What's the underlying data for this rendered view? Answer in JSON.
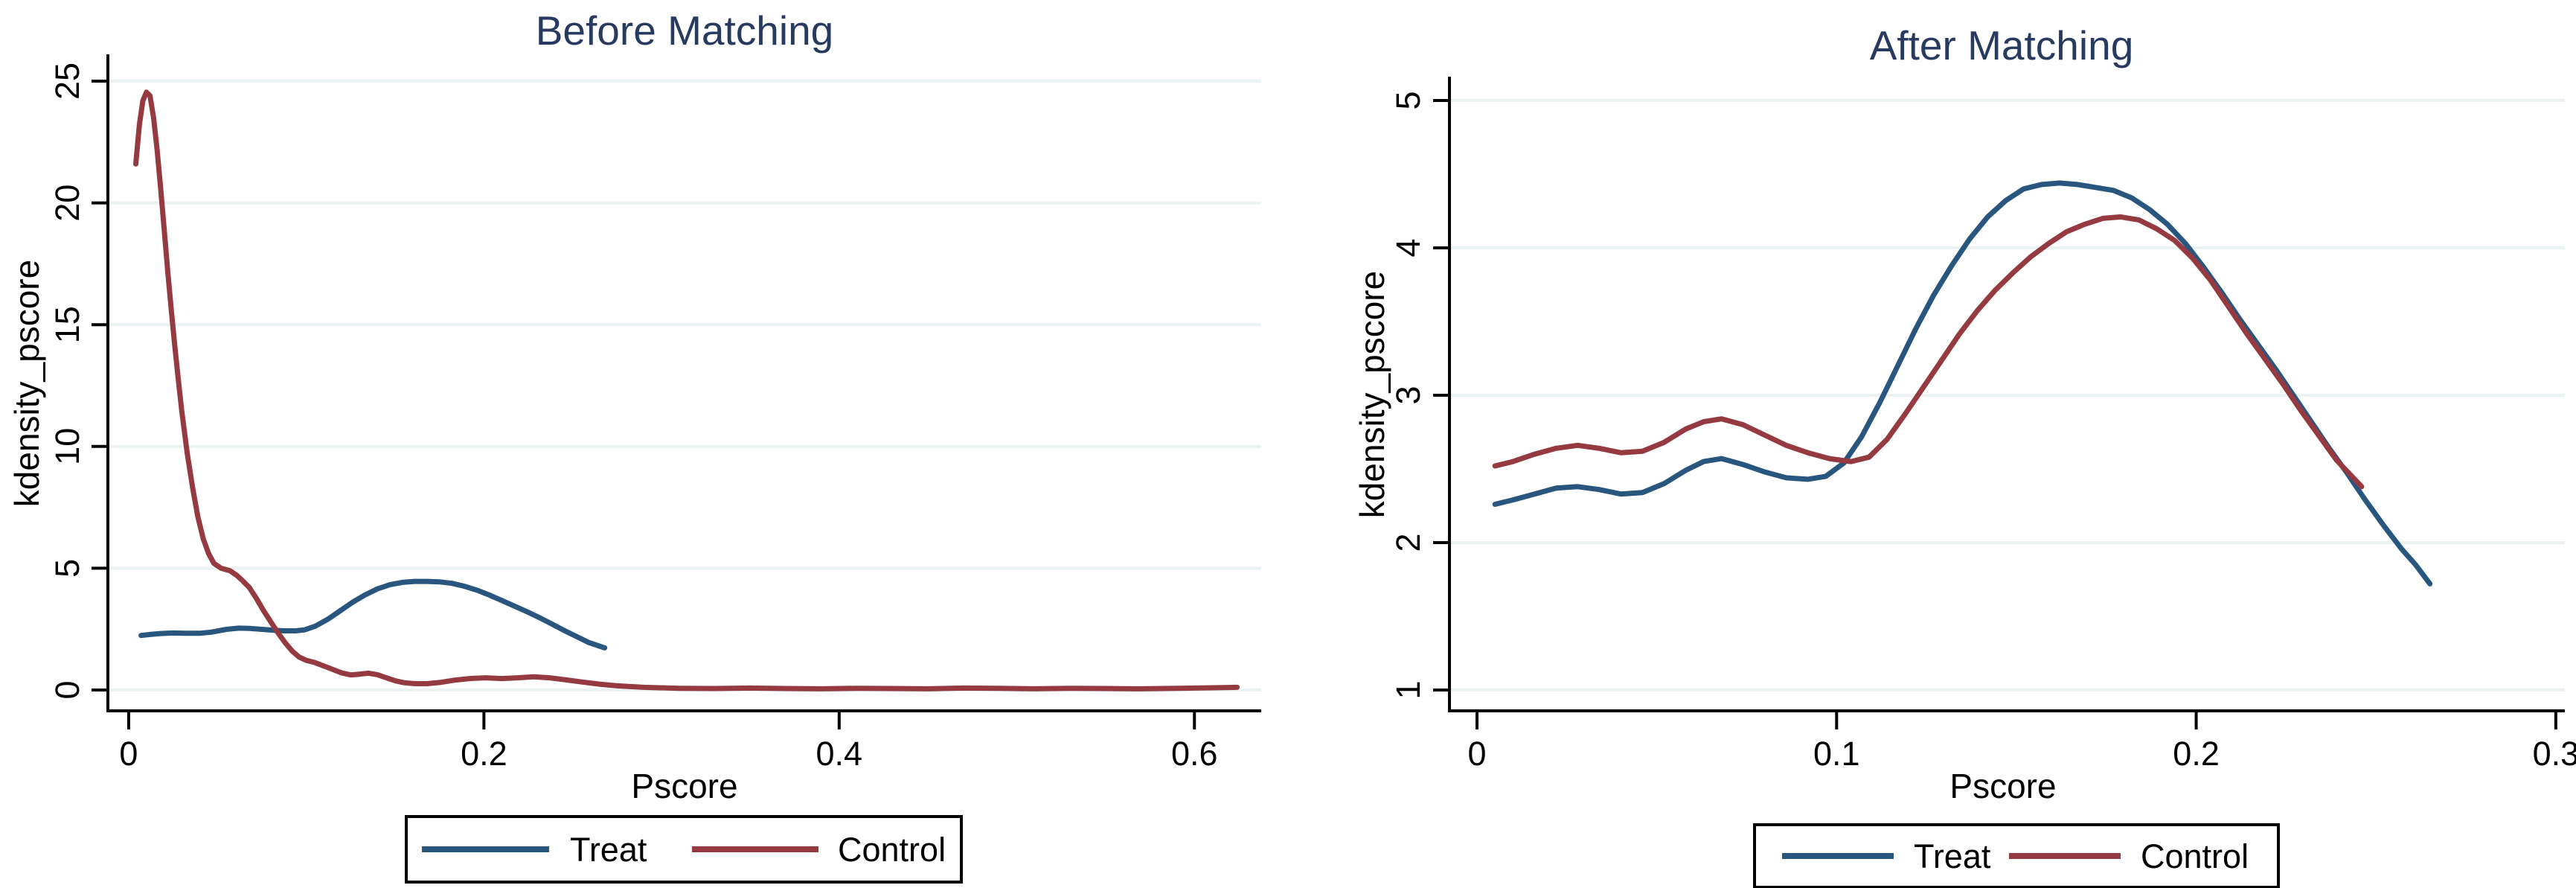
{
  "figure": {
    "description": "Two kernel density plots of propensity scores",
    "background": "#ffffff"
  },
  "colors": {
    "treat": "#28567f",
    "control": "#943a40",
    "title_text": "#273a5f",
    "grid": "#eaf2f3",
    "axis": "#000000",
    "legend_border": "#000000",
    "legend_background": "#ffffff"
  },
  "chart_data": [
    {
      "type": "line",
      "title": "Before Matching",
      "xlabel": "Pscore",
      "ylabel": "kdensity_pscore",
      "grid": "horizontal",
      "legend_position": "bottom",
      "legend": {
        "treat": "Treat",
        "control": "Control"
      },
      "xlim": [
        -0.0117,
        0.6376
      ],
      "ylim": [
        -0.856,
        26.04
      ],
      "x_ticks": [
        {
          "v": 0,
          "label": "0"
        },
        {
          "v": 0.2,
          "label": "0.2"
        },
        {
          "v": 0.4,
          "label": "0.4"
        },
        {
          "v": 0.6,
          "label": "0.6"
        }
      ],
      "y_ticks": [
        {
          "v": 0,
          "label": "0"
        },
        {
          "v": 5,
          "label": "5"
        },
        {
          "v": 10,
          "label": "10"
        },
        {
          "v": 15,
          "label": "15"
        },
        {
          "v": 20,
          "label": "20"
        },
        {
          "v": 25,
          "label": "25"
        }
      ],
      "series": [
        {
          "name": "Treat",
          "color": "#28567f",
          "points": [
            [
              0.007,
              2.24
            ],
            [
              0.012,
              2.28
            ],
            [
              0.018,
              2.32
            ],
            [
              0.025,
              2.34
            ],
            [
              0.032,
              2.33
            ],
            [
              0.04,
              2.33
            ],
            [
              0.047,
              2.38
            ],
            [
              0.055,
              2.49
            ],
            [
              0.062,
              2.54
            ],
            [
              0.068,
              2.53
            ],
            [
              0.075,
              2.49
            ],
            [
              0.082,
              2.45
            ],
            [
              0.088,
              2.43
            ],
            [
              0.094,
              2.43
            ],
            [
              0.099,
              2.47
            ],
            [
              0.105,
              2.62
            ],
            [
              0.112,
              2.9
            ],
            [
              0.119,
              3.25
            ],
            [
              0.126,
              3.6
            ],
            [
              0.133,
              3.9
            ],
            [
              0.14,
              4.15
            ],
            [
              0.147,
              4.32
            ],
            [
              0.154,
              4.42
            ],
            [
              0.161,
              4.46
            ],
            [
              0.168,
              4.46
            ],
            [
              0.175,
              4.44
            ],
            [
              0.182,
              4.38
            ],
            [
              0.189,
              4.26
            ],
            [
              0.196,
              4.1
            ],
            [
              0.203,
              3.9
            ],
            [
              0.21,
              3.68
            ],
            [
              0.217,
              3.45
            ],
            [
              0.224,
              3.22
            ],
            [
              0.231,
              2.98
            ],
            [
              0.238,
              2.72
            ],
            [
              0.245,
              2.45
            ],
            [
              0.252,
              2.2
            ],
            [
              0.259,
              1.95
            ],
            [
              0.268,
              1.73
            ]
          ]
        },
        {
          "name": "Control",
          "color": "#943a40",
          "points": [
            [
              0.004,
              21.6
            ],
            [
              0.006,
              23.2
            ],
            [
              0.008,
              24.2
            ],
            [
              0.01,
              24.55
            ],
            [
              0.012,
              24.4
            ],
            [
              0.014,
              23.5
            ],
            [
              0.016,
              22.2
            ],
            [
              0.018,
              20.6
            ],
            [
              0.02,
              18.9
            ],
            [
              0.022,
              17.2
            ],
            [
              0.024,
              15.6
            ],
            [
              0.026,
              14.1
            ],
            [
              0.028,
              12.7
            ],
            [
              0.03,
              11.4
            ],
            [
              0.033,
              9.7
            ],
            [
              0.036,
              8.3
            ],
            [
              0.039,
              7.1
            ],
            [
              0.042,
              6.2
            ],
            [
              0.045,
              5.6
            ],
            [
              0.048,
              5.2
            ],
            [
              0.052,
              5.0
            ],
            [
              0.057,
              4.9
            ],
            [
              0.061,
              4.7
            ],
            [
              0.064,
              4.5
            ],
            [
              0.068,
              4.2
            ],
            [
              0.072,
              3.75
            ],
            [
              0.076,
              3.25
            ],
            [
              0.08,
              2.8
            ],
            [
              0.084,
              2.35
            ],
            [
              0.088,
              1.95
            ],
            [
              0.092,
              1.6
            ],
            [
              0.096,
              1.35
            ],
            [
              0.1,
              1.22
            ],
            [
              0.105,
              1.12
            ],
            [
              0.11,
              0.98
            ],
            [
              0.115,
              0.84
            ],
            [
              0.12,
              0.7
            ],
            [
              0.125,
              0.62
            ],
            [
              0.13,
              0.65
            ],
            [
              0.135,
              0.69
            ],
            [
              0.14,
              0.63
            ],
            [
              0.145,
              0.5
            ],
            [
              0.15,
              0.38
            ],
            [
              0.155,
              0.3
            ],
            [
              0.161,
              0.26
            ],
            [
              0.168,
              0.26
            ],
            [
              0.175,
              0.31
            ],
            [
              0.183,
              0.4
            ],
            [
              0.192,
              0.47
            ],
            [
              0.201,
              0.5
            ],
            [
              0.21,
              0.47
            ],
            [
              0.219,
              0.5
            ],
            [
              0.228,
              0.54
            ],
            [
              0.237,
              0.5
            ],
            [
              0.246,
              0.42
            ],
            [
              0.255,
              0.33
            ],
            [
              0.265,
              0.24
            ],
            [
              0.275,
              0.17
            ],
            [
              0.29,
              0.11
            ],
            [
              0.31,
              0.07
            ],
            [
              0.33,
              0.06
            ],
            [
              0.35,
              0.08
            ],
            [
              0.37,
              0.06
            ],
            [
              0.39,
              0.05
            ],
            [
              0.41,
              0.07
            ],
            [
              0.43,
              0.06
            ],
            [
              0.45,
              0.05
            ],
            [
              0.47,
              0.08
            ],
            [
              0.49,
              0.07
            ],
            [
              0.51,
              0.05
            ],
            [
              0.53,
              0.07
            ],
            [
              0.55,
              0.06
            ],
            [
              0.57,
              0.05
            ],
            [
              0.59,
              0.07
            ],
            [
              0.61,
              0.09
            ],
            [
              0.624,
              0.11
            ]
          ]
        }
      ]
    },
    {
      "type": "line",
      "title": "After Matching",
      "xlabel": "Pscore",
      "ylabel": "kdensity_pscore",
      "grid": "horizontal",
      "legend_position": "bottom",
      "legend": {
        "treat": "Treat",
        "control": "Control"
      },
      "xlim": [
        -0.00766,
        0.30251
      ],
      "ylim": [
        0.8586,
        5.1515
      ],
      "x_ticks": [
        {
          "v": 0,
          "label": "0"
        },
        {
          "v": 0.1,
          "label": "0.1"
        },
        {
          "v": 0.2,
          "label": "0.2"
        },
        {
          "v": 0.3,
          "label": "0.3"
        }
      ],
      "y_ticks": [
        {
          "v": 1,
          "label": "1"
        },
        {
          "v": 2,
          "label": "2"
        },
        {
          "v": 3,
          "label": "3"
        },
        {
          "v": 4,
          "label": "4"
        },
        {
          "v": 5,
          "label": "5"
        }
      ],
      "series": [
        {
          "name": "Treat",
          "color": "#28567f",
          "points": [
            [
              0.005,
              2.26
            ],
            [
              0.01,
              2.29
            ],
            [
              0.016,
              2.33
            ],
            [
              0.022,
              2.37
            ],
            [
              0.028,
              2.38
            ],
            [
              0.034,
              2.36
            ],
            [
              0.04,
              2.33
            ],
            [
              0.046,
              2.34
            ],
            [
              0.052,
              2.4
            ],
            [
              0.058,
              2.49
            ],
            [
              0.063,
              2.55
            ],
            [
              0.068,
              2.57
            ],
            [
              0.074,
              2.53
            ],
            [
              0.08,
              2.48
            ],
            [
              0.086,
              2.44
            ],
            [
              0.092,
              2.43
            ],
            [
              0.097,
              2.45
            ],
            [
              0.102,
              2.54
            ],
            [
              0.107,
              2.72
            ],
            [
              0.112,
              2.95
            ],
            [
              0.117,
              3.2
            ],
            [
              0.122,
              3.45
            ],
            [
              0.127,
              3.68
            ],
            [
              0.132,
              3.88
            ],
            [
              0.137,
              4.06
            ],
            [
              0.142,
              4.21
            ],
            [
              0.147,
              4.32
            ],
            [
              0.152,
              4.4
            ],
            [
              0.157,
              4.43
            ],
            [
              0.162,
              4.44
            ],
            [
              0.167,
              4.43
            ],
            [
              0.172,
              4.41
            ],
            [
              0.177,
              4.39
            ],
            [
              0.182,
              4.34
            ],
            [
              0.187,
              4.26
            ],
            [
              0.192,
              4.16
            ],
            [
              0.197,
              4.03
            ],
            [
              0.202,
              3.87
            ],
            [
              0.207,
              3.7
            ],
            [
              0.212,
              3.52
            ],
            [
              0.217,
              3.35
            ],
            [
              0.222,
              3.18
            ],
            [
              0.227,
              3.0
            ],
            [
              0.232,
              2.82
            ],
            [
              0.237,
              2.64
            ],
            [
              0.242,
              2.47
            ],
            [
              0.247,
              2.29
            ],
            [
              0.252,
              2.12
            ],
            [
              0.257,
              1.96
            ],
            [
              0.261,
              1.85
            ],
            [
              0.265,
              1.72
            ]
          ]
        },
        {
          "name": "Control",
          "color": "#943a40",
          "points": [
            [
              0.005,
              2.52
            ],
            [
              0.01,
              2.55
            ],
            [
              0.016,
              2.6
            ],
            [
              0.022,
              2.64
            ],
            [
              0.028,
              2.66
            ],
            [
              0.034,
              2.64
            ],
            [
              0.04,
              2.61
            ],
            [
              0.046,
              2.62
            ],
            [
              0.052,
              2.68
            ],
            [
              0.058,
              2.77
            ],
            [
              0.063,
              2.82
            ],
            [
              0.068,
              2.84
            ],
            [
              0.074,
              2.8
            ],
            [
              0.08,
              2.73
            ],
            [
              0.086,
              2.66
            ],
            [
              0.092,
              2.61
            ],
            [
              0.098,
              2.57
            ],
            [
              0.104,
              2.55
            ],
            [
              0.109,
              2.58
            ],
            [
              0.114,
              2.7
            ],
            [
              0.119,
              2.87
            ],
            [
              0.124,
              3.05
            ],
            [
              0.129,
              3.23
            ],
            [
              0.134,
              3.41
            ],
            [
              0.139,
              3.57
            ],
            [
              0.144,
              3.71
            ],
            [
              0.149,
              3.83
            ],
            [
              0.154,
              3.94
            ],
            [
              0.159,
              4.03
            ],
            [
              0.164,
              4.11
            ],
            [
              0.169,
              4.16
            ],
            [
              0.174,
              4.2
            ],
            [
              0.179,
              4.21
            ],
            [
              0.184,
              4.19
            ],
            [
              0.189,
              4.13
            ],
            [
              0.194,
              4.05
            ],
            [
              0.199,
              3.93
            ],
            [
              0.204,
              3.78
            ],
            [
              0.209,
              3.6
            ],
            [
              0.214,
              3.42
            ],
            [
              0.219,
              3.25
            ],
            [
              0.224,
              3.08
            ],
            [
              0.229,
              2.9
            ],
            [
              0.234,
              2.73
            ],
            [
              0.239,
              2.56
            ],
            [
              0.246,
              2.38
            ]
          ]
        }
      ]
    }
  ]
}
